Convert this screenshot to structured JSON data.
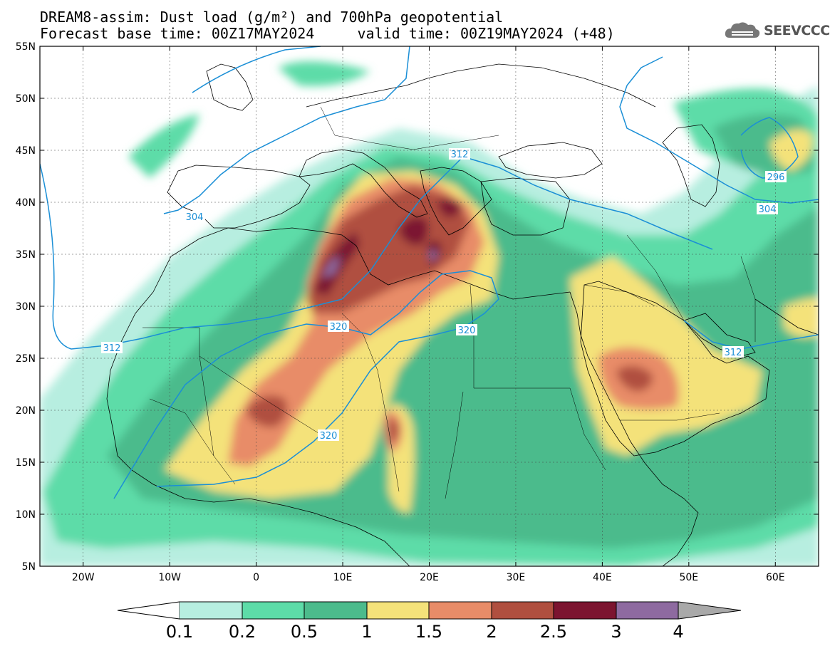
{
  "title": {
    "line1": "DREAM8-assim: Dust load (g/m²) and 700hPa geopotential",
    "line2": "Forecast base time: 00Z17MAY2024     valid time: 00Z19MAY2024 (+48)"
  },
  "logo": {
    "text": "SEEVCCC",
    "icon": "cloud-logo-icon"
  },
  "map": {
    "lon_range": [
      -25,
      65
    ],
    "lat_range": [
      5,
      55
    ],
    "y_ticks": [
      "5N",
      "10N",
      "15N",
      "20N",
      "25N",
      "30N",
      "35N",
      "40N",
      "45N",
      "50N",
      "55N"
    ],
    "x_ticks": [
      "20W",
      "10W",
      "0",
      "10E",
      "20E",
      "30E",
      "40E",
      "50E",
      "60E"
    ],
    "contour_labels": [
      "304",
      "312",
      "320",
      "320",
      "320",
      "312",
      "304",
      "296",
      "312"
    ]
  },
  "colorbar": {
    "labels": [
      "0.1",
      "0.2",
      "0.5",
      "1",
      "1.5",
      "2",
      "2.5",
      "3",
      "4"
    ],
    "colors": {
      "c1": "#b7eee0",
      "c2": "#5ddca8",
      "c3": "#4cbb8c",
      "c4": "#f4e27a",
      "c5": "#e88c68",
      "c6": "#b04f3f",
      "c7": "#7c1430",
      "c8": "#8e6aa0",
      "c9": "#a9a9a9"
    }
  }
}
